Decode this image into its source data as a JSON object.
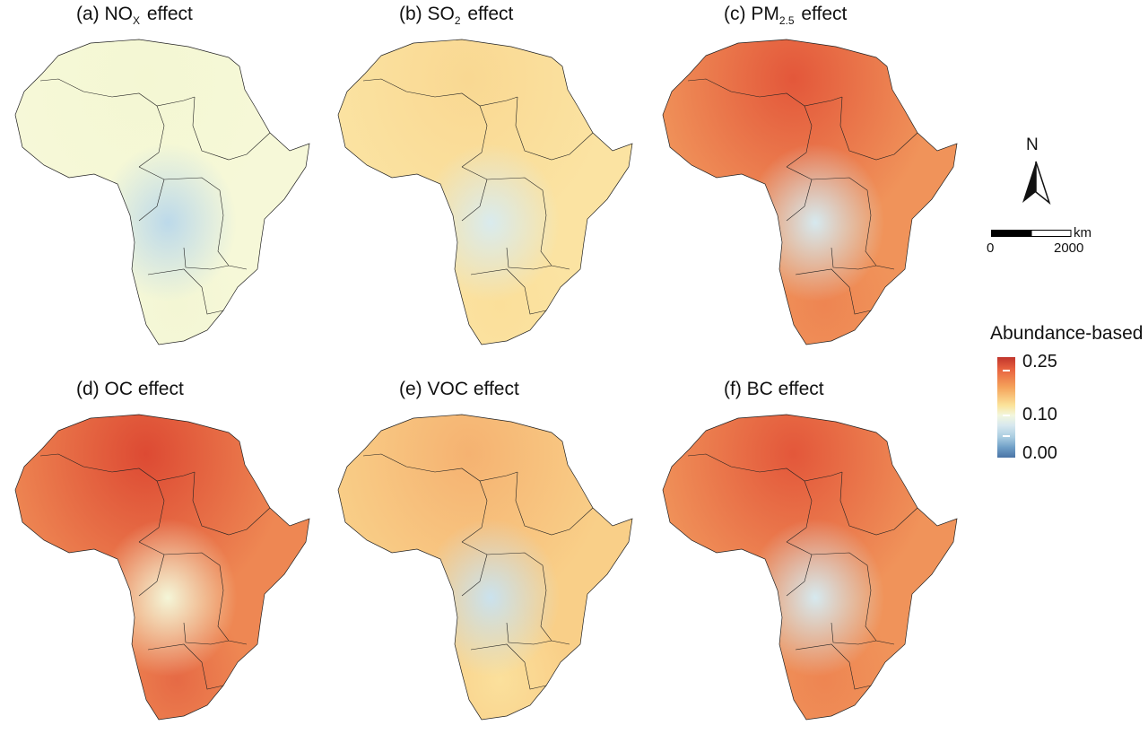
{
  "panels": [
    {
      "id": "a",
      "prefix": "(a) NO",
      "sub": "X",
      "suffix": " effect",
      "palette": "nox"
    },
    {
      "id": "b",
      "prefix": "(b) SO",
      "sub": "2",
      "suffix": " effect",
      "palette": "so2"
    },
    {
      "id": "c",
      "prefix": "(c) PM",
      "sub": "2.5",
      "suffix": " effect",
      "palette": "pm"
    },
    {
      "id": "d",
      "prefix": "(d) OC effect",
      "sub": "",
      "suffix": "",
      "palette": "oc"
    },
    {
      "id": "e",
      "prefix": "(e) VOC effect",
      "sub": "",
      "suffix": "",
      "palette": "voc"
    },
    {
      "id": "f",
      "prefix": "(f) BC effect",
      "sub": "",
      "suffix": "",
      "palette": "bc"
    }
  ],
  "north_arrow": {
    "label": "N"
  },
  "scale_bar": {
    "unit": "km",
    "start": "0",
    "end": "2000"
  },
  "legend": {
    "title": "Abundance-based Ω",
    "labels": [
      "0.25",
      "0.10",
      "0.00"
    ],
    "colors": {
      "high": "#c1352c",
      "mid": "#fbe39a",
      "low": "#4a74a6"
    }
  },
  "palettes": {
    "nox": {
      "base": "#f6f8d8",
      "north": "#f4f7d3",
      "center": "#bcd9ea",
      "south": "#f3f6d4"
    },
    "so2": {
      "base": "#fbe3a2",
      "north": "#f9d892",
      "center": "#d9ebee",
      "south": "#fbdf9a"
    },
    "pm": {
      "base": "#f0935a",
      "north": "#e3573a",
      "center": "#d6e9ef",
      "south": "#ee8552"
    },
    "oc": {
      "base": "#ee8753",
      "north": "#dd4a33",
      "center": "#f4f6d8",
      "south": "#e66a45"
    },
    "voc": {
      "base": "#f9cf88",
      "north": "#f5b271",
      "center": "#cae2ee",
      "south": "#fbe09c"
    },
    "bc": {
      "base": "#f0935a",
      "north": "#e3573a",
      "center": "#d6e9ef",
      "south": "#ee8552"
    }
  }
}
